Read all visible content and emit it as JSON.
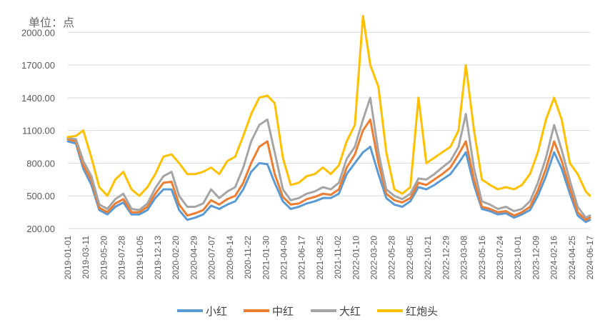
{
  "chart_data": {
    "type": "line",
    "unit_label": "单位：点",
    "ylim": [
      200,
      2100
    ],
    "yticks": [
      "200.00",
      "500.00",
      "800.00",
      "1100.00",
      "1400.00",
      "1700.00",
      "2000.00"
    ],
    "ytick_values": [
      200,
      500,
      800,
      1100,
      1400,
      1700,
      2000
    ],
    "xlim": [
      "2019-01-01",
      "2024-06-17"
    ],
    "xticks": [
      "2019-01-01",
      "2019-03-11",
      "2019-05-20",
      "2019-07-28",
      "2019-10-05",
      "2019-12-13",
      "2020-02-20",
      "2020-04-29",
      "2020-07-07",
      "2020-09-14",
      "2020-11-22",
      "2021-01-30",
      "2021-04-09",
      "2021-06-17",
      "2021-08-25",
      "2021-11-02",
      "2022-01-10",
      "2022-03-20",
      "2022-05-28",
      "2022-08-05",
      "2022-10-21",
      "2022-12-29",
      "2023-03-08",
      "2023-05-16",
      "2023-07-24",
      "2023-10-01",
      "2023-12-09",
      "2024-02-16",
      "2024-04-25",
      "2024-06-17"
    ],
    "grid": true,
    "legend_position": "bottom",
    "series": [
      {
        "name": "小红",
        "color": "#5B9BD5",
        "x": [
          "2019-01-01",
          "2019-02-01",
          "2019-03-01",
          "2019-04-01",
          "2019-05-01",
          "2019-06-01",
          "2019-07-01",
          "2019-08-01",
          "2019-09-01",
          "2019-10-01",
          "2019-11-01",
          "2019-12-01",
          "2020-01-01",
          "2020-02-01",
          "2020-03-01",
          "2020-04-01",
          "2020-05-01",
          "2020-06-01",
          "2020-07-01",
          "2020-08-01",
          "2020-09-01",
          "2020-10-01",
          "2020-11-01",
          "2020-12-01",
          "2021-01-01",
          "2021-02-01",
          "2021-03-01",
          "2021-04-01",
          "2021-05-01",
          "2021-06-01",
          "2021-07-01",
          "2021-08-01",
          "2021-09-01",
          "2021-10-01",
          "2021-11-01",
          "2021-12-01",
          "2022-01-01",
          "2022-02-01",
          "2022-03-01",
          "2022-04-01",
          "2022-05-01",
          "2022-06-01",
          "2022-07-01",
          "2022-08-01",
          "2022-09-01",
          "2022-10-01",
          "2022-11-01",
          "2022-12-01",
          "2023-01-01",
          "2023-02-01",
          "2023-03-01",
          "2023-04-01",
          "2023-05-01",
          "2023-06-01",
          "2023-07-01",
          "2023-08-01",
          "2023-09-01",
          "2023-10-01",
          "2023-11-01",
          "2023-12-01",
          "2024-01-01",
          "2024-02-01",
          "2024-03-01",
          "2024-04-01",
          "2024-05-01",
          "2024-06-01",
          "2024-06-17"
        ],
        "values": [
          1000,
          980,
          750,
          600,
          370,
          330,
          400,
          440,
          330,
          330,
          370,
          480,
          560,
          560,
          370,
          280,
          300,
          330,
          410,
          380,
          420,
          450,
          560,
          720,
          800,
          790,
          620,
          450,
          380,
          400,
          430,
          450,
          480,
          480,
          520,
          700,
          800,
          900,
          950,
          700,
          480,
          420,
          400,
          450,
          580,
          560,
          600,
          650,
          700,
          800,
          900,
          600,
          380,
          360,
          330,
          340,
          300,
          330,
          370,
          500,
          680,
          900,
          750,
          520,
          320,
          260,
          280
        ]
      },
      {
        "name": "中红",
        "color": "#ED7D31",
        "x": [
          "2019-01-01",
          "2019-02-01",
          "2019-03-01",
          "2019-04-01",
          "2019-05-01",
          "2019-06-01",
          "2019-07-01",
          "2019-08-01",
          "2019-09-01",
          "2019-10-01",
          "2019-11-01",
          "2019-12-01",
          "2020-01-01",
          "2020-02-01",
          "2020-03-01",
          "2020-04-01",
          "2020-05-01",
          "2020-06-01",
          "2020-07-01",
          "2020-08-01",
          "2020-09-01",
          "2020-10-01",
          "2020-11-01",
          "2020-12-01",
          "2021-01-01",
          "2021-02-01",
          "2021-03-01",
          "2021-04-01",
          "2021-05-01",
          "2021-06-01",
          "2021-07-01",
          "2021-08-01",
          "2021-09-01",
          "2021-10-01",
          "2021-11-01",
          "2021-12-01",
          "2022-01-01",
          "2022-02-01",
          "2022-03-01",
          "2022-04-01",
          "2022-05-01",
          "2022-06-01",
          "2022-07-01",
          "2022-08-01",
          "2022-09-01",
          "2022-10-01",
          "2022-11-01",
          "2022-12-01",
          "2023-01-01",
          "2023-02-01",
          "2023-03-01",
          "2023-04-01",
          "2023-05-01",
          "2023-06-01",
          "2023-07-01",
          "2023-08-01",
          "2023-09-01",
          "2023-10-01",
          "2023-11-01",
          "2023-12-01",
          "2024-01-01",
          "2024-02-01",
          "2024-03-01",
          "2024-04-01",
          "2024-05-01",
          "2024-06-01",
          "2024-06-17"
        ],
        "values": [
          1020,
          1000,
          780,
          640,
          390,
          350,
          430,
          470,
          350,
          350,
          400,
          520,
          620,
          630,
          420,
          320,
          340,
          370,
          460,
          420,
          470,
          500,
          620,
          800,
          950,
          1000,
          700,
          490,
          420,
          430,
          470,
          490,
          520,
          510,
          560,
          760,
          880,
          1100,
          1200,
          800,
          520,
          460,
          440,
          480,
          620,
          600,
          650,
          700,
          760,
          880,
          1000,
          650,
          400,
          380,
          350,
          360,
          320,
          350,
          400,
          550,
          750,
          1000,
          820,
          570,
          350,
          280,
          300
        ]
      },
      {
        "name": "大红",
        "color": "#A5A5A5",
        "x": [
          "2019-01-01",
          "2019-02-01",
          "2019-03-01",
          "2019-04-01",
          "2019-05-01",
          "2019-06-01",
          "2019-07-01",
          "2019-08-01",
          "2019-09-01",
          "2019-10-01",
          "2019-11-01",
          "2019-12-01",
          "2020-01-01",
          "2020-02-01",
          "2020-03-01",
          "2020-04-01",
          "2020-05-01",
          "2020-06-01",
          "2020-07-01",
          "2020-08-01",
          "2020-09-01",
          "2020-10-01",
          "2020-11-01",
          "2020-12-01",
          "2021-01-01",
          "2021-02-01",
          "2021-03-01",
          "2021-04-01",
          "2021-05-01",
          "2021-06-01",
          "2021-07-01",
          "2021-08-01",
          "2021-09-01",
          "2021-10-01",
          "2021-11-01",
          "2021-12-01",
          "2022-01-01",
          "2022-02-01",
          "2022-03-01",
          "2022-04-01",
          "2022-05-01",
          "2022-06-01",
          "2022-07-01",
          "2022-08-01",
          "2022-09-01",
          "2022-10-01",
          "2022-11-01",
          "2022-12-01",
          "2023-01-01",
          "2023-02-01",
          "2023-03-01",
          "2023-04-01",
          "2023-05-01",
          "2023-06-01",
          "2023-07-01",
          "2023-08-01",
          "2023-09-01",
          "2023-10-01",
          "2023-11-01",
          "2023-12-01",
          "2024-01-01",
          "2024-02-01",
          "2024-03-01",
          "2024-04-01",
          "2024-05-01",
          "2024-06-01",
          "2024-06-17"
        ],
        "values": [
          1030,
          1020,
          820,
          680,
          420,
          380,
          470,
          520,
          380,
          370,
          430,
          570,
          680,
          720,
          500,
          400,
          400,
          430,
          560,
          480,
          540,
          580,
          760,
          1000,
          1150,
          1200,
          900,
          560,
          460,
          480,
          520,
          540,
          580,
          560,
          620,
          840,
          950,
          1200,
          1400,
          900,
          560,
          500,
          470,
          520,
          660,
          650,
          700,
          760,
          820,
          950,
          1250,
          750,
          450,
          420,
          380,
          400,
          360,
          380,
          450,
          620,
          850,
          1150,
          920,
          640,
          400,
          300,
          320
        ]
      },
      {
        "name": "红炮头",
        "color": "#FFC000",
        "x": [
          "2019-01-01",
          "2019-02-01",
          "2019-03-01",
          "2019-04-01",
          "2019-05-01",
          "2019-06-01",
          "2019-07-01",
          "2019-08-01",
          "2019-09-01",
          "2019-10-01",
          "2019-11-01",
          "2019-12-01",
          "2020-01-01",
          "2020-02-01",
          "2020-03-01",
          "2020-04-01",
          "2020-05-01",
          "2020-06-01",
          "2020-07-01",
          "2020-08-01",
          "2020-09-01",
          "2020-10-01",
          "2020-11-01",
          "2020-12-01",
          "2021-01-01",
          "2021-02-01",
          "2021-03-01",
          "2021-04-01",
          "2021-05-01",
          "2021-06-01",
          "2021-07-01",
          "2021-08-01",
          "2021-09-01",
          "2021-10-01",
          "2021-11-01",
          "2021-12-01",
          "2022-01-01",
          "2022-02-01",
          "2022-03-01",
          "2022-04-01",
          "2022-05-01",
          "2022-06-01",
          "2022-07-01",
          "2022-08-01",
          "2022-09-01",
          "2022-10-01",
          "2022-11-01",
          "2022-12-01",
          "2023-01-01",
          "2023-02-01",
          "2023-03-01",
          "2023-04-01",
          "2023-05-01",
          "2023-06-01",
          "2023-07-01",
          "2023-08-01",
          "2023-09-01",
          "2023-10-01",
          "2023-11-01",
          "2023-12-01",
          "2024-01-01",
          "2024-02-01",
          "2024-03-01",
          "2024-04-01",
          "2024-05-01",
          "2024-06-01",
          "2024-06-17"
        ],
        "values": [
          1040,
          1050,
          1100,
          850,
          580,
          500,
          650,
          720,
          560,
          500,
          580,
          700,
          860,
          880,
          800,
          700,
          700,
          720,
          760,
          700,
          820,
          860,
          1050,
          1250,
          1400,
          1420,
          1350,
          850,
          600,
          620,
          680,
          700,
          760,
          700,
          780,
          1000,
          1150,
          2150,
          1700,
          1500,
          900,
          560,
          520,
          580,
          1400,
          800,
          850,
          900,
          950,
          1100,
          1700,
          1100,
          650,
          600,
          560,
          580,
          560,
          600,
          700,
          900,
          1200,
          1400,
          1200,
          800,
          700,
          540,
          500
        ]
      }
    ]
  }
}
